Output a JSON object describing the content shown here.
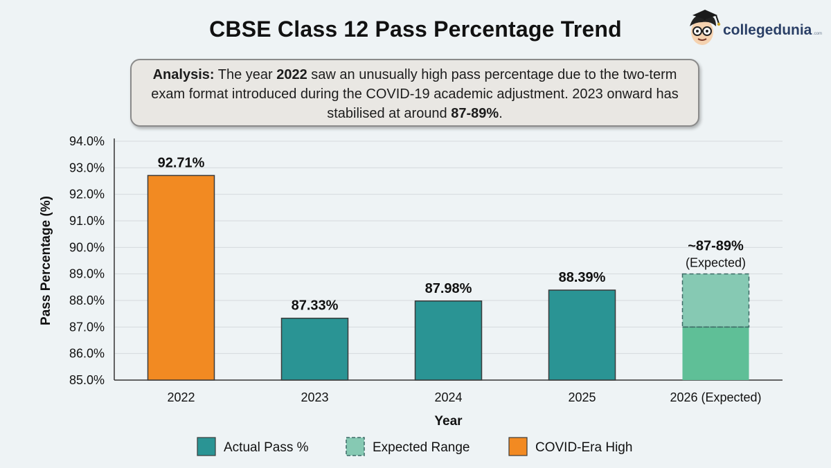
{
  "title": "CBSE Class 12 Pass Percentage Trend",
  "brand": {
    "name": "collegedunia",
    "suffix": ".com",
    "icon": "student-mascot-icon"
  },
  "analysis": {
    "lead": "Analysis:",
    "text_1": " The year ",
    "year": "2022",
    "text_2": " saw an unusually high pass percentage due to the two-term exam format introduced during the COVID-19 academic adjustment. 2023 onward has stabilised at around ",
    "range": "87-89%",
    "text_3": "."
  },
  "colors": {
    "actual": "#2a9494",
    "covid": "#f28a22",
    "expected_low": "#5fbf97",
    "expected_high": "#86c9b3",
    "grid": "#d5dadd",
    "axis": "#333333"
  },
  "chart_data": {
    "type": "bar",
    "xlabel": "Year",
    "ylabel": "Pass Percentage (%)",
    "ylim": [
      85.0,
      94.0
    ],
    "y_ticks": [
      "85.0%",
      "86.0%",
      "87.0%",
      "88.0%",
      "89.0%",
      "90.0%",
      "91.0%",
      "92.0%",
      "93.0%",
      "94.0%"
    ],
    "grid": "horizontal",
    "legend_position": "bottom",
    "categories": [
      "2022",
      "2023",
      "2024",
      "2025",
      "2026 (Expected)"
    ],
    "bars": [
      {
        "category": "2022",
        "value": 92.71,
        "label": "92.71%",
        "kind": "covid"
      },
      {
        "category": "2023",
        "value": 87.33,
        "label": "87.33%",
        "kind": "actual"
      },
      {
        "category": "2024",
        "value": 87.98,
        "label": "87.98%",
        "kind": "actual"
      },
      {
        "category": "2025",
        "value": 88.39,
        "label": "88.39%",
        "kind": "actual"
      },
      {
        "category": "2026 (Expected)",
        "range": [
          87.0,
          89.0
        ],
        "label": "~87-89%",
        "sublabel": "(Expected)",
        "kind": "expected"
      }
    ],
    "legend": [
      {
        "label": "Actual Pass %",
        "kind": "actual"
      },
      {
        "label": "Expected Range",
        "kind": "expected"
      },
      {
        "label": "COVID-Era High",
        "kind": "covid"
      }
    ]
  }
}
